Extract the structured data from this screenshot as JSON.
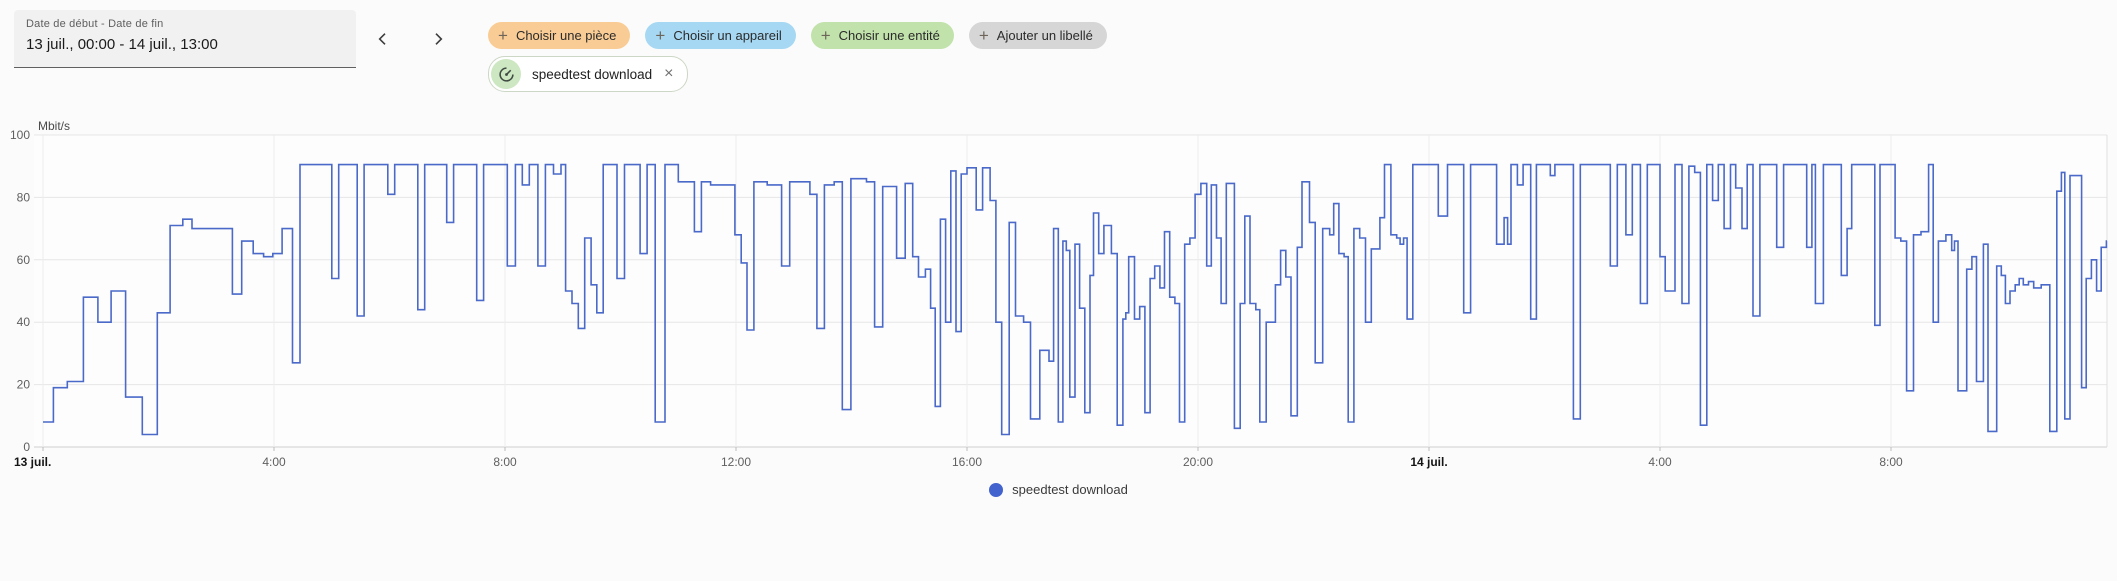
{
  "header": {
    "date_label": "Date de début - Date de fin",
    "date_value": "13 juil., 00:00 - 14 juil., 13:00",
    "chips": [
      {
        "label": "Choisir une pièce",
        "color": "#f9cc95"
      },
      {
        "label": "Choisir un appareil",
        "color": "#a6d8f3"
      },
      {
        "label": "Choisir une entité",
        "color": "#c1e2ab"
      },
      {
        "label": "Ajouter un libellé",
        "color": "#d6d6d6"
      }
    ]
  },
  "icons": {
    "plus": "+",
    "close": "×"
  },
  "filter_chip": {
    "label": "speedtest download",
    "icon_bg": "#cde7c2",
    "icon_color": "#3f4a42"
  },
  "chart_data": {
    "type": "line-step",
    "unit": "Mbit/s",
    "ylim": [
      0,
      100
    ],
    "y_ticks": [
      0,
      20,
      40,
      60,
      80,
      100
    ],
    "xmax": 35.74,
    "grid": true,
    "legend_position": "bottom-center",
    "x_ticks": [
      {
        "t": 0,
        "label": "13 juil.",
        "bold": true
      },
      {
        "t": 4,
        "label": "4:00"
      },
      {
        "t": 8,
        "label": "8:00"
      },
      {
        "t": 12,
        "label": "12:00"
      },
      {
        "t": 16,
        "label": "16:00"
      },
      {
        "t": 20,
        "label": "20:00"
      },
      {
        "t": 24,
        "label": "14 juil.",
        "bold": true
      },
      {
        "t": 28,
        "label": "4:00"
      },
      {
        "t": 32,
        "label": "8:00"
      }
    ],
    "legend": {
      "label": "speedtest download",
      "dot_color": "#4262cd"
    },
    "series": [
      {
        "name": "speedtest download",
        "color": "#4a69c9",
        "points": [
          [
            0,
            8
          ],
          [
            0.18,
            19
          ],
          [
            0.42,
            21
          ],
          [
            0.7,
            48
          ],
          [
            0.95,
            40
          ],
          [
            1.18,
            50
          ],
          [
            1.43,
            16
          ],
          [
            1.72,
            4
          ],
          [
            1.98,
            43
          ],
          [
            2.2,
            71
          ],
          [
            2.42,
            73
          ],
          [
            2.58,
            70
          ],
          [
            3.28,
            49
          ],
          [
            3.44,
            66
          ],
          [
            3.64,
            62
          ],
          [
            3.82,
            61
          ],
          [
            3.98,
            62
          ],
          [
            4.14,
            70
          ],
          [
            4.32,
            27
          ],
          [
            4.45,
            90.5
          ],
          [
            5.0,
            54
          ],
          [
            5.12,
            90.5
          ],
          [
            5.44,
            42
          ],
          [
            5.56,
            90.5
          ],
          [
            5.97,
            81
          ],
          [
            6.09,
            90.5
          ],
          [
            6.49,
            44
          ],
          [
            6.61,
            90.5
          ],
          [
            6.99,
            72
          ],
          [
            7.11,
            90.5
          ],
          [
            7.51,
            47
          ],
          [
            7.63,
            90.5
          ],
          [
            8.04,
            58
          ],
          [
            8.18,
            90.5
          ],
          [
            8.3,
            84
          ],
          [
            8.42,
            90.5
          ],
          [
            8.57,
            58
          ],
          [
            8.7,
            90.5
          ],
          [
            8.84,
            87.5
          ],
          [
            8.97,
            90.5
          ],
          [
            9.05,
            50
          ],
          [
            9.16,
            46
          ],
          [
            9.27,
            38
          ],
          [
            9.38,
            67
          ],
          [
            9.49,
            52
          ],
          [
            9.59,
            43
          ],
          [
            9.7,
            90.5
          ],
          [
            9.94,
            54
          ],
          [
            10.07,
            90.5
          ],
          [
            10.34,
            62
          ],
          [
            10.46,
            90.5
          ],
          [
            10.6,
            8
          ],
          [
            10.77,
            90.5
          ],
          [
            11.0,
            85
          ],
          [
            11.28,
            69
          ],
          [
            11.4,
            85
          ],
          [
            11.56,
            84
          ],
          [
            11.98,
            68
          ],
          [
            12.09,
            59
          ],
          [
            12.19,
            37.5
          ],
          [
            12.31,
            85
          ],
          [
            12.54,
            84
          ],
          [
            12.79,
            58
          ],
          [
            12.93,
            85
          ],
          [
            13.28,
            81
          ],
          [
            13.4,
            38
          ],
          [
            13.53,
            84
          ],
          [
            13.7,
            85
          ],
          [
            13.84,
            12
          ],
          [
            13.99,
            86
          ],
          [
            14.26,
            85
          ],
          [
            14.4,
            38.5
          ],
          [
            14.54,
            83.5
          ],
          [
            14.78,
            60.5
          ],
          [
            14.93,
            84.5
          ],
          [
            15.06,
            61
          ],
          [
            15.16,
            54.5
          ],
          [
            15.28,
            57
          ],
          [
            15.37,
            44.5
          ],
          [
            15.45,
            13
          ],
          [
            15.54,
            73
          ],
          [
            15.63,
            40
          ],
          [
            15.72,
            88.5
          ],
          [
            15.81,
            37
          ],
          [
            15.9,
            87.5
          ],
          [
            16.0,
            89.5
          ],
          [
            16.16,
            76
          ],
          [
            16.27,
            89.5
          ],
          [
            16.4,
            79
          ],
          [
            16.5,
            40
          ],
          [
            16.6,
            4
          ],
          [
            16.73,
            72
          ],
          [
            16.84,
            42
          ],
          [
            16.98,
            40
          ],
          [
            17.1,
            9
          ],
          [
            17.26,
            31
          ],
          [
            17.42,
            27.5
          ],
          [
            17.5,
            70
          ],
          [
            17.58,
            8
          ],
          [
            17.66,
            66
          ],
          [
            17.72,
            63
          ],
          [
            17.78,
            16
          ],
          [
            17.87,
            65
          ],
          [
            17.95,
            44.5
          ],
          [
            18.04,
            11
          ],
          [
            18.13,
            55
          ],
          [
            18.19,
            75
          ],
          [
            18.28,
            62
          ],
          [
            18.37,
            71
          ],
          [
            18.5,
            62
          ],
          [
            18.6,
            7
          ],
          [
            18.7,
            41
          ],
          [
            18.75,
            43
          ],
          [
            18.8,
            61
          ],
          [
            18.9,
            41
          ],
          [
            18.99,
            45
          ],
          [
            19.08,
            11
          ],
          [
            19.17,
            54
          ],
          [
            19.25,
            58
          ],
          [
            19.34,
            51
          ],
          [
            19.42,
            69
          ],
          [
            19.51,
            48
          ],
          [
            19.6,
            46
          ],
          [
            19.68,
            8
          ],
          [
            19.77,
            65
          ],
          [
            19.86,
            67
          ],
          [
            19.95,
            81
          ],
          [
            20.05,
            84.5
          ],
          [
            20.15,
            58
          ],
          [
            20.23,
            84
          ],
          [
            20.32,
            67
          ],
          [
            20.4,
            46
          ],
          [
            20.49,
            84.5
          ],
          [
            20.63,
            6
          ],
          [
            20.73,
            46
          ],
          [
            20.81,
            74
          ],
          [
            20.9,
            46
          ],
          [
            21.0,
            44
          ],
          [
            21.07,
            8
          ],
          [
            21.18,
            40
          ],
          [
            21.34,
            52
          ],
          [
            21.43,
            63
          ],
          [
            21.52,
            54.5
          ],
          [
            21.61,
            10
          ],
          [
            21.72,
            64
          ],
          [
            21.8,
            85
          ],
          [
            21.93,
            72
          ],
          [
            22.03,
            27
          ],
          [
            22.16,
            70
          ],
          [
            22.28,
            68
          ],
          [
            22.35,
            78
          ],
          [
            22.44,
            62
          ],
          [
            22.53,
            61
          ],
          [
            22.6,
            8
          ],
          [
            22.7,
            70
          ],
          [
            22.8,
            67
          ],
          [
            22.9,
            40
          ],
          [
            23.0,
            63.5
          ],
          [
            23.15,
            73.5
          ],
          [
            23.23,
            90.5
          ],
          [
            23.34,
            68
          ],
          [
            23.44,
            67
          ],
          [
            23.5,
            65
          ],
          [
            23.56,
            67
          ],
          [
            23.62,
            41
          ],
          [
            23.72,
            90.5
          ],
          [
            24.16,
            74
          ],
          [
            24.32,
            90.5
          ],
          [
            24.6,
            43
          ],
          [
            24.72,
            90.5
          ],
          [
            25.17,
            65
          ],
          [
            25.3,
            73.5
          ],
          [
            25.36,
            65
          ],
          [
            25.42,
            90.5
          ],
          [
            25.53,
            84
          ],
          [
            25.63,
            90.5
          ],
          [
            25.76,
            41
          ],
          [
            25.86,
            90.5
          ],
          [
            26.1,
            87
          ],
          [
            26.18,
            90.5
          ],
          [
            26.5,
            9
          ],
          [
            26.62,
            90.5
          ],
          [
            27.14,
            58
          ],
          [
            27.26,
            90.5
          ],
          [
            27.41,
            68
          ],
          [
            27.52,
            90.5
          ],
          [
            27.66,
            46
          ],
          [
            27.78,
            90.5
          ],
          [
            28.0,
            61
          ],
          [
            28.09,
            50
          ],
          [
            28.26,
            90.5
          ],
          [
            28.38,
            46
          ],
          [
            28.5,
            90
          ],
          [
            28.6,
            88
          ],
          [
            28.7,
            7
          ],
          [
            28.81,
            90.5
          ],
          [
            28.91,
            79
          ],
          [
            29.01,
            90.5
          ],
          [
            29.11,
            70
          ],
          [
            29.22,
            90.5
          ],
          [
            29.31,
            83
          ],
          [
            29.42,
            70
          ],
          [
            29.51,
            90.5
          ],
          [
            29.61,
            42
          ],
          [
            29.73,
            90.5
          ],
          [
            30.02,
            64
          ],
          [
            30.14,
            90.5
          ],
          [
            30.54,
            64
          ],
          [
            30.63,
            90.5
          ],
          [
            30.69,
            46
          ],
          [
            30.83,
            90.5
          ],
          [
            31.14,
            55
          ],
          [
            31.24,
            70
          ],
          [
            31.32,
            90.5
          ],
          [
            31.72,
            39
          ],
          [
            31.81,
            90.5
          ],
          [
            32.07,
            67
          ],
          [
            32.17,
            66
          ],
          [
            32.27,
            18
          ],
          [
            32.39,
            68
          ],
          [
            32.52,
            69
          ],
          [
            32.65,
            90.5
          ],
          [
            32.73,
            40
          ],
          [
            32.82,
            66
          ],
          [
            32.95,
            68
          ],
          [
            33.05,
            63
          ],
          [
            33.1,
            66
          ],
          [
            33.16,
            18
          ],
          [
            33.31,
            57
          ],
          [
            33.4,
            61
          ],
          [
            33.48,
            21
          ],
          [
            33.6,
            65
          ],
          [
            33.68,
            5
          ],
          [
            33.83,
            58
          ],
          [
            33.91,
            55
          ],
          [
            33.98,
            46
          ],
          [
            34.06,
            50
          ],
          [
            34.15,
            52
          ],
          [
            34.22,
            54
          ],
          [
            34.29,
            52
          ],
          [
            34.38,
            53
          ],
          [
            34.47,
            51
          ],
          [
            34.6,
            52
          ],
          [
            34.75,
            5
          ],
          [
            34.87,
            82
          ],
          [
            34.95,
            88
          ],
          [
            35.01,
            9
          ],
          [
            35.1,
            87
          ],
          [
            35.3,
            19
          ],
          [
            35.38,
            54
          ],
          [
            35.47,
            60
          ],
          [
            35.56,
            50
          ],
          [
            35.64,
            64
          ],
          [
            35.73,
            66
          ]
        ]
      }
    ]
  }
}
